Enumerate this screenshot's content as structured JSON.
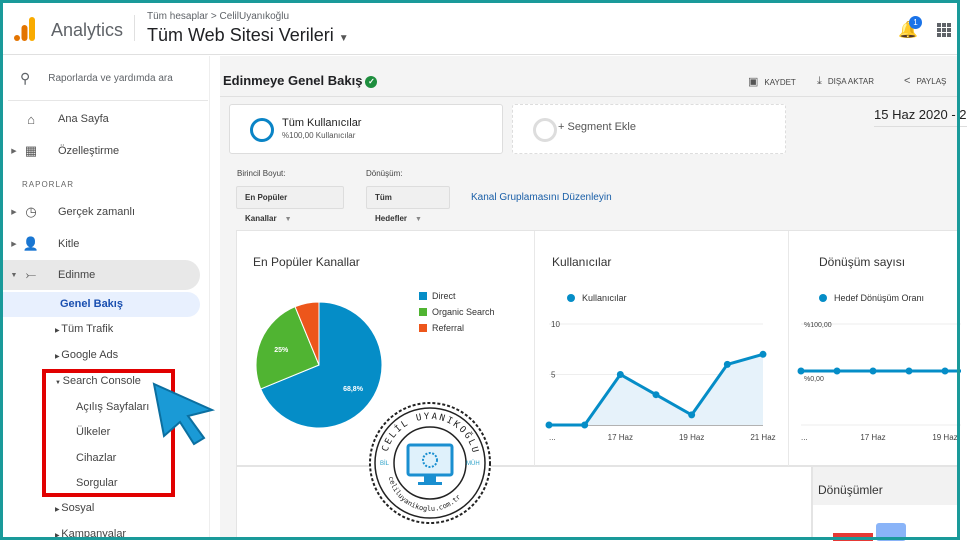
{
  "header": {
    "app_name": "Analytics",
    "breadcrumb": "Tüm hesaplar > CelilUyanıkoğlu",
    "property": "Tüm Web Sitesi Verileri",
    "notification_count": "1"
  },
  "sidebar": {
    "search_placeholder": "Raporlarda ve yardımda ara",
    "home": "Ana Sayfa",
    "customization": "Özelleştirme",
    "reports_heading": "RAPORLAR",
    "items": [
      {
        "label": "Gerçek zamanlı"
      },
      {
        "label": "Kitle"
      },
      {
        "label": "Edinme"
      }
    ],
    "acquisition_sub": [
      "Genel Bakış",
      "Tüm Trafik",
      "Google Ads",
      "Search Console",
      "Sosyal",
      "Kampanyalar"
    ],
    "search_console_sub": [
      "Açılış Sayfaları",
      "Ülkeler",
      "Cihazlar",
      "Sorgular"
    ]
  },
  "main": {
    "title": "Edinmeye Genel Bakış",
    "actions": {
      "save": "KAYDET",
      "export": "DIŞA AKTAR",
      "share": "PAYLAŞ"
    },
    "segment": {
      "name": "Tüm Kullanıcılar",
      "sub": "%100,00 Kullanıcılar",
      "add": "+ Segment Ekle"
    },
    "date_range": "15 Haz 2020 - 2",
    "primary_dimension_label": "Birincil Boyut:",
    "primary_dimension": "En Popüler Kanallar",
    "conversion_label": "Dönüşüm:",
    "conversion": "Tüm Hedefler",
    "edit_link": "Kanal Gruplamasını Düzenleyin",
    "conversions_title": "Dönüşümler"
  },
  "colors": {
    "accent": "#058dc7",
    "direct": "#058dc7",
    "organic": "#50b432",
    "referral": "#ed561b",
    "highlight_box": "#e10000",
    "frame": "#1a9a9a"
  },
  "chart_data": [
    {
      "type": "pie",
      "title": "En Popüler Kanallar",
      "legend": "right",
      "slices": [
        {
          "name": "Direct",
          "value": 68.8,
          "label": "68,8%"
        },
        {
          "name": "Organic Search",
          "value": 25,
          "label": "25%"
        },
        {
          "name": "Referral",
          "value": 6.2
        }
      ]
    },
    {
      "type": "area",
      "title": "Kullanıcılar",
      "series": [
        {
          "name": "Kullanıcılar",
          "values": [
            0,
            0,
            5,
            3,
            1,
            6,
            7
          ]
        }
      ],
      "x_ticks": [
        "...",
        "17 Haz",
        "19 Haz",
        "21 Haz"
      ],
      "y_ticks": [
        "10",
        "5"
      ],
      "ylim": [
        0,
        10
      ],
      "grid": true
    },
    {
      "type": "line",
      "title": "Dönüşüm sayısı",
      "series": [
        {
          "name": "Hedef Dönüşüm Oranı",
          "values": [
            0,
            0,
            0,
            0,
            0
          ]
        }
      ],
      "x_ticks": [
        "...",
        "17 Haz",
        "19 Haz"
      ],
      "y_ticks": [
        "%100,00",
        "%0,00"
      ],
      "grid": true
    }
  ],
  "watermark": {
    "text_top": "CELİL UYANIKOĞLU",
    "left": "BİL",
    "right": "MÜH",
    "bottom": "celiluyanikoglu.com.tr"
  }
}
